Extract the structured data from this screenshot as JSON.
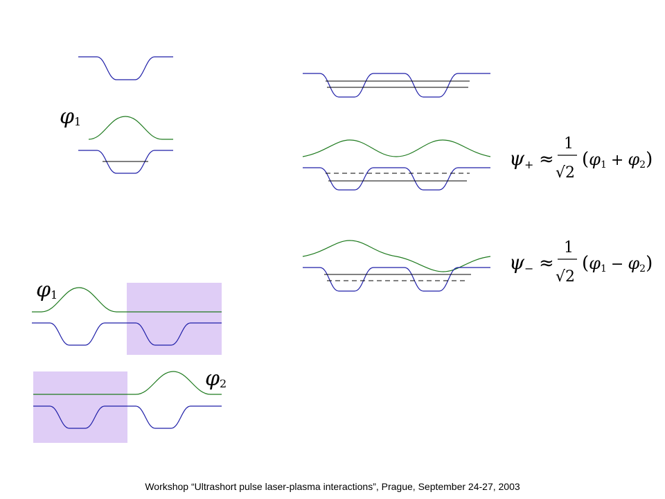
{
  "footer": "Workshop “Ultrashort pulse laser-plasma interactions”, Prague, September 24-27, 2003",
  "labels": {
    "phi": "φ",
    "psi": "ψ",
    "sub1": "1",
    "sub2": "2",
    "plus": "+",
    "minus": "−",
    "approx": "≈",
    "one": "1",
    "sqrt2": "√2",
    "open_paren": "(",
    "close_paren": ")"
  },
  "colors": {
    "well": "#1f1fa8",
    "wavefunction": "#1e7a1e",
    "shade": "#dcc8f5"
  }
}
